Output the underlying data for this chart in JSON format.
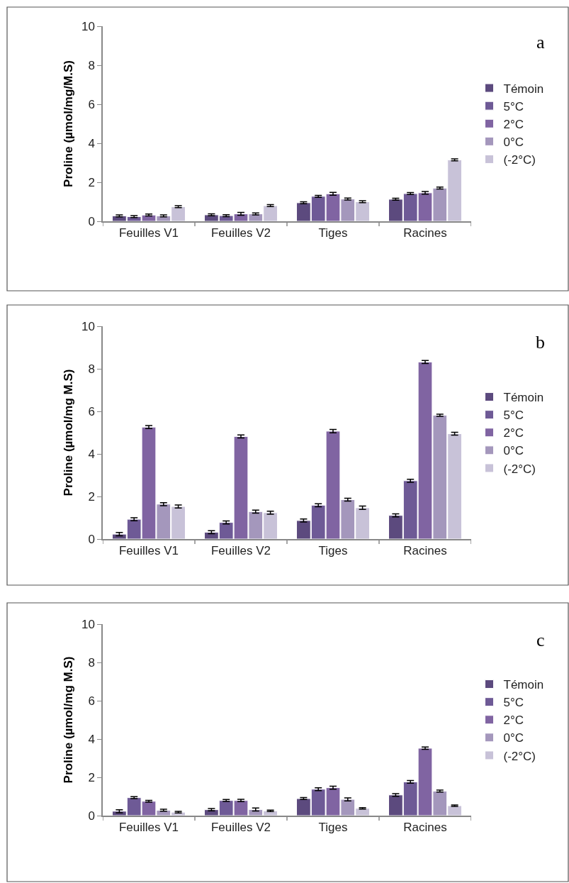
{
  "chart_data": [
    {
      "type": "bar",
      "ylabel": "Proline (µmol/mg/M.S)",
      "annotations": [
        "a"
      ],
      "categories": [
        "Feuilles V1",
        "Feuilles V2",
        "Tiges",
        "Racines"
      ],
      "ylim": [
        0,
        10
      ],
      "yticks": [
        0,
        2,
        4,
        6,
        8,
        10
      ],
      "legend": "right",
      "grid": false,
      "series": [
        {
          "name": "Témoin",
          "color": "#5c4a7e",
          "values": [
            0.28,
            0.33,
            0.95,
            1.13
          ],
          "errors": [
            0.05,
            0.05,
            0.05,
            0.05
          ]
        },
        {
          "name": "5°C",
          "color": "#6e5a96",
          "values": [
            0.24,
            0.29,
            1.28,
            1.42
          ],
          "errors": [
            0.05,
            0.05,
            0.05,
            0.05
          ]
        },
        {
          "name": "2°C",
          "color": "#8064a2",
          "values": [
            0.32,
            0.38,
            1.41,
            1.46
          ],
          "errors": [
            0.05,
            0.07,
            0.07,
            0.07
          ]
        },
        {
          "name": "0°C",
          "color": "#a497bc",
          "values": [
            0.28,
            0.38,
            1.14,
            1.7
          ],
          "errors": [
            0.05,
            0.05,
            0.05,
            0.05
          ]
        },
        {
          "name": "(-2°C)",
          "color": "#c8c2d8",
          "values": [
            0.75,
            0.8,
            1.0,
            3.15
          ],
          "errors": [
            0.05,
            0.05,
            0.05,
            0.05
          ]
        }
      ]
    },
    {
      "type": "bar",
      "ylabel": "Proline (µmol/mg M.S)",
      "annotations": [
        "b"
      ],
      "categories": [
        "Feuilles V1",
        "Feuilles V2",
        "Tiges",
        "Racines"
      ],
      "ylim": [
        0,
        10
      ],
      "yticks": [
        0,
        2,
        4,
        6,
        8,
        10
      ],
      "legend": "right",
      "grid": false,
      "series": [
        {
          "name": "Témoin",
          "color": "#5c4a7e",
          "values": [
            0.23,
            0.32,
            0.87,
            1.11
          ],
          "errors": [
            0.08,
            0.07,
            0.07,
            0.07
          ]
        },
        {
          "name": "5°C",
          "color": "#6e5a96",
          "values": [
            0.93,
            0.78,
            1.59,
            2.74
          ],
          "errors": [
            0.07,
            0.07,
            0.07,
            0.07
          ]
        },
        {
          "name": "2°C",
          "color": "#8064a2",
          "values": [
            5.26,
            4.82,
            5.07,
            8.32
          ],
          "errors": [
            0.07,
            0.07,
            0.08,
            0.07
          ]
        },
        {
          "name": "0°C",
          "color": "#a497bc",
          "values": [
            1.64,
            1.29,
            1.85,
            5.82
          ],
          "errors": [
            0.07,
            0.07,
            0.07,
            0.05
          ]
        },
        {
          "name": "(-2°C)",
          "color": "#c8c2d8",
          "values": [
            1.53,
            1.24,
            1.47,
            4.95
          ],
          "errors": [
            0.07,
            0.07,
            0.08,
            0.07
          ]
        }
      ]
    },
    {
      "type": "bar",
      "ylabel": "Proline (µmol/mg M.S)",
      "annotations": [
        "c"
      ],
      "categories": [
        "Feuilles V1",
        "Feuilles V2",
        "Tiges",
        "Racines"
      ],
      "ylim": [
        0,
        10
      ],
      "yticks": [
        0,
        2,
        4,
        6,
        8,
        10
      ],
      "legend": "right",
      "grid": false,
      "series": [
        {
          "name": "Témoin",
          "color": "#5c4a7e",
          "values": [
            0.23,
            0.31,
            0.89,
            1.08
          ],
          "errors": [
            0.08,
            0.06,
            0.05,
            0.07
          ]
        },
        {
          "name": "5°C",
          "color": "#6e5a96",
          "values": [
            0.94,
            0.79,
            1.38,
            1.76
          ],
          "errors": [
            0.05,
            0.05,
            0.07,
            0.07
          ]
        },
        {
          "name": "2°C",
          "color": "#8064a2",
          "values": [
            0.75,
            0.79,
            1.46,
            3.52
          ],
          "errors": [
            0.05,
            0.06,
            0.08,
            0.06
          ]
        },
        {
          "name": "0°C",
          "color": "#a497bc",
          "values": [
            0.28,
            0.32,
            0.85,
            1.28
          ],
          "errors": [
            0.05,
            0.08,
            0.08,
            0.05
          ]
        },
        {
          "name": "(-2°C)",
          "color": "#c8c2d8",
          "values": [
            0.18,
            0.25,
            0.38,
            0.52
          ],
          "errors": [
            0.04,
            0.04,
            0.04,
            0.04
          ]
        }
      ]
    }
  ]
}
